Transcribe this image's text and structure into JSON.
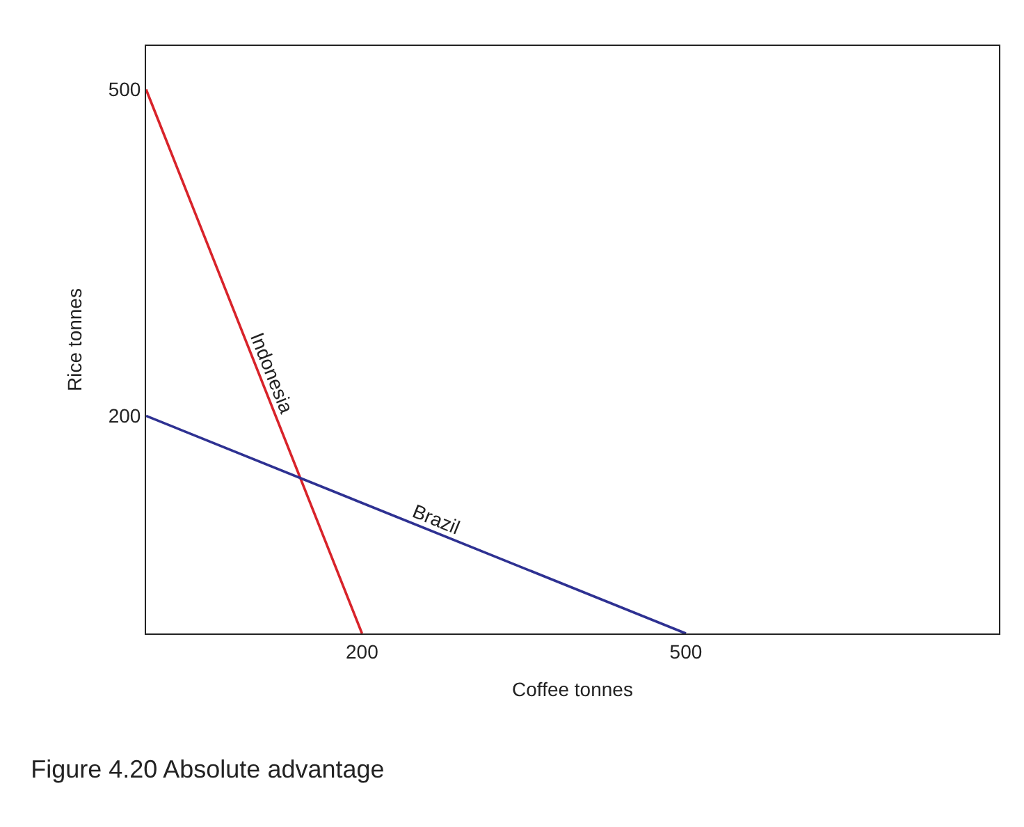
{
  "chart_data": {
    "type": "line",
    "title": "Figure 4.20 Absolute advantage",
    "xlabel": "Coffee tonnes",
    "ylabel": "Rice tonnes",
    "series": [
      {
        "name": "Indonesia",
        "color": "#d8232a",
        "x": [
          0,
          200
        ],
        "values": [
          500,
          0
        ]
      },
      {
        "name": "Brazil",
        "color": "#2e3192",
        "x": [
          0,
          500
        ],
        "values": [
          200,
          0
        ]
      }
    ],
    "xlim": [
      0,
      790
    ],
    "ylim": [
      0,
      540
    ],
    "xticks": [
      200,
      500
    ],
    "yticks": [
      200,
      500
    ],
    "legend": false,
    "marker": "none",
    "line_style": "solid"
  }
}
